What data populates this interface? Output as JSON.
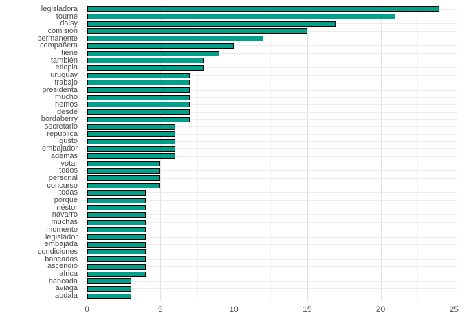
{
  "chart_data": {
    "type": "bar",
    "orientation": "horizontal",
    "title": "",
    "xlabel": "",
    "ylabel": "",
    "xlim": [
      0,
      25
    ],
    "x_ticks": [
      0,
      5,
      10,
      15,
      20,
      25
    ],
    "minor_ticks": [
      2.5,
      7.5,
      12.5,
      17.5,
      22.5
    ],
    "grid": true,
    "legend": false,
    "bar_color": "#00A08A",
    "bar_border_color": "#000000",
    "categories": [
      "legisladora",
      "tourné",
      "daisy",
      "comisión",
      "permanente",
      "compañera",
      "tiene",
      "también",
      "etiopia",
      "uruguay",
      "trabajo",
      "presidenta",
      "mucho",
      "hemos",
      "desde",
      "bordaberry",
      "secretario",
      "república",
      "gusto",
      "embajador",
      "además",
      "votar",
      "todos",
      "personal",
      "concurso",
      "todas",
      "porque",
      "néstor",
      "navarro",
      "muchas",
      "momento",
      "legislador",
      "embajada",
      "condiciones",
      "bancadas",
      "ascendió",
      "africa",
      "bancada",
      "aviaga",
      "abdala"
    ],
    "values": [
      24,
      21,
      17,
      15,
      12,
      10,
      9,
      8,
      8,
      7,
      7,
      7,
      7,
      7,
      7,
      7,
      6,
      6,
      6,
      6,
      6,
      5,
      5,
      5,
      5,
      4,
      4,
      4,
      4,
      4,
      4,
      4,
      4,
      4,
      4,
      4,
      4,
      3,
      3,
      3
    ]
  }
}
